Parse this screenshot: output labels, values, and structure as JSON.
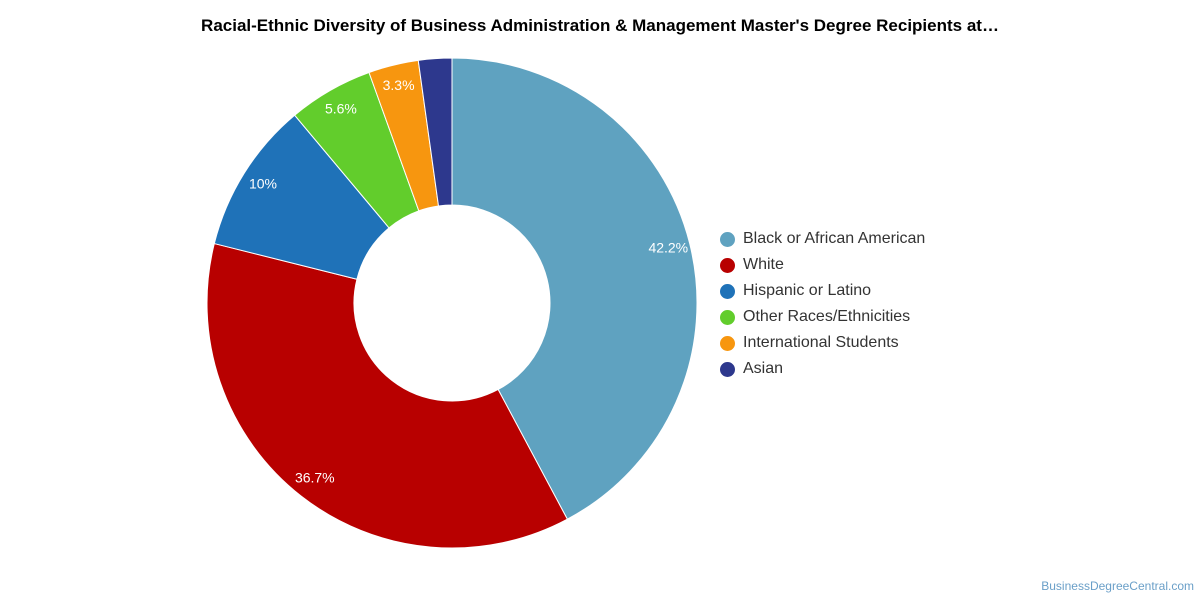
{
  "chart_data": {
    "type": "pie",
    "title": "Racial-Ethnic Diversity of Business Administration & Management Master's Degree Recipients at…",
    "legend_position": "right",
    "categories": [
      "Black or African American",
      "White",
      "Hispanic or Latino",
      "Other Races/Ethnicities",
      "International Students",
      "Asian"
    ],
    "values": [
      42.2,
      36.7,
      10,
      5.6,
      3.3,
      2.2
    ],
    "data_labels": [
      "42.2%",
      "36.7%",
      "10%",
      "5.6%",
      "3.3%",
      ""
    ],
    "colors": [
      "#5fa2c0",
      "#b80000",
      "#1f72b8",
      "#62cd2c",
      "#f7960f",
      "#2d388d"
    ]
  },
  "footer": {
    "source": "BusinessDegreeCentral.com"
  }
}
